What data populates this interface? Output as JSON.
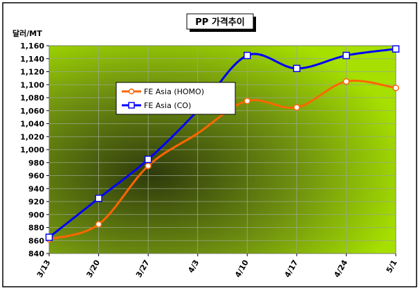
{
  "chart_data": {
    "type": "line",
    "title": "PP 가격추이",
    "ylabel": "달러/MT",
    "xlabel": "",
    "ylim": [
      840,
      1160
    ],
    "yticks": [
      840,
      860,
      880,
      900,
      920,
      940,
      960,
      980,
      1000,
      1020,
      1040,
      1060,
      1080,
      1100,
      1120,
      1140,
      1160
    ],
    "yticklabels": [
      "840",
      "860",
      "880",
      "900",
      "920",
      "940",
      "960",
      "980",
      "1,000",
      "1,020",
      "1,040",
      "1,060",
      "1,080",
      "1,100",
      "1,120",
      "1,140",
      "1,160"
    ],
    "categories": [
      "3/13",
      "3/20",
      "3/27",
      "4/3",
      "4/10",
      "4/17",
      "4/24",
      "5/1"
    ],
    "grid": true,
    "legend_position": "upper-left",
    "series": [
      {
        "name": "FE Asia (HOMO)",
        "color": "#ff6600",
        "marker": "circle",
        "marker_fill": "#ffffff",
        "values": [
          862,
          885,
          975,
          null,
          1075,
          1065,
          1105,
          1095
        ]
      },
      {
        "name": "FE Asia (CO)",
        "color": "#0000ff",
        "marker": "square",
        "marker_fill": "#ffffff",
        "values": [
          865,
          925,
          985,
          null,
          1145,
          1125,
          1145,
          1155
        ]
      }
    ],
    "unmarked_points": {
      "FE Asia (HOMO)": {
        "category": "4/3",
        "value": 1025
      },
      "FE Asia (CO)": {
        "category": "4/3",
        "value": 1060
      }
    },
    "colors": {
      "plot_bg_center": "#2e3a0c",
      "plot_bg_edge": "#a6e000",
      "grid": "#9aa78a",
      "frame": "#000000"
    }
  }
}
